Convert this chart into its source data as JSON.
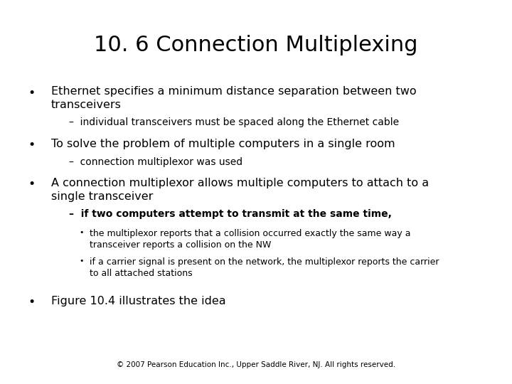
{
  "title": "10. 6 Connection Multiplexing",
  "background_color": "#ffffff",
  "text_color": "#000000",
  "title_fontsize": 22,
  "body_fontsize": 11.5,
  "sub_fontsize": 10,
  "small_fontsize": 9,
  "footer": "© 2007 Pearson Education Inc., Upper Saddle River, NJ. All rights reserved.",
  "bullet1_main": "Ethernet specifies a minimum distance separation between two\ntransceivers",
  "bullet1_sub": "–  individual transceivers must be spaced along the Ethernet cable",
  "bullet2_main": "To solve the problem of multiple computers in a single room",
  "bullet2_sub": "–  connection multiplexor was used",
  "bullet3_main": "A connection multiplexor allows multiple computers to attach to a\nsingle transceiver",
  "bullet3_sub_bold": "–  if two computers attempt to transmit at the same time,",
  "bullet3_sub1": "the multiplexor reports that a collision occurred exactly the same way a\ntransceiver reports a collision on the NW",
  "bullet3_sub2": "if a carrier signal is present on the network, the multiplexor reports the carrier\nto all attached stations",
  "bullet4_main": "Figure 10.4 illustrates the idea"
}
